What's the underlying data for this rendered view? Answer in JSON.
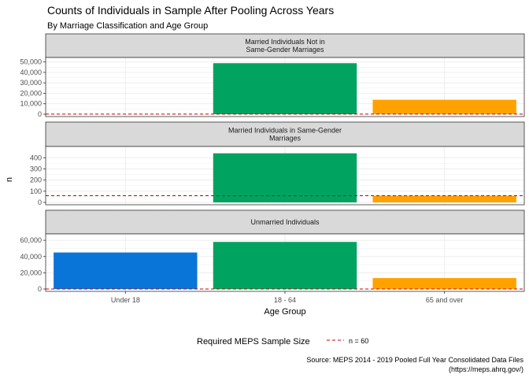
{
  "chart_data": {
    "type": "bar",
    "title": "Counts of Individuals in Sample After Pooling Across Years",
    "subtitle": "By Marriage Classification and Age Group",
    "xlabel": "Age Group",
    "ylabel": "n",
    "categories": [
      "Under 18",
      "18 - 64",
      "65 and over"
    ],
    "category_colors": [
      "#0A75D8",
      "#00A35F",
      "#FFA200"
    ],
    "facets": [
      {
        "label_lines": [
          "Married Individuals Not in",
          "Same-Gender Marriages"
        ],
        "values": [
          0,
          48800,
          13800
        ],
        "ylim": [
          0,
          52000
        ],
        "yticks": [
          0,
          10000,
          20000,
          30000,
          40000,
          50000
        ],
        "ytick_labels": [
          "0",
          "10,000",
          "20,000",
          "30,000",
          "40,000",
          "50,000"
        ]
      },
      {
        "label_lines": [
          "Married Individuals in Same-Gender",
          "Marriages"
        ],
        "values": [
          0,
          440,
          60
        ],
        "ylim": [
          0,
          480
        ],
        "yticks": [
          0,
          100,
          200,
          300,
          400
        ],
        "ytick_labels": [
          "0",
          "100",
          "200",
          "300",
          "400"
        ]
      },
      {
        "label_lines": [
          "Unmarried Individuals"
        ],
        "values": [
          45000,
          58000,
          13500
        ],
        "ylim": [
          0,
          65000
        ],
        "yticks": [
          0,
          20000,
          40000,
          60000
        ],
        "ytick_labels": [
          "0",
          "20,000",
          "40,000",
          "60,000"
        ]
      }
    ],
    "reference_line": {
      "value": 60,
      "color": "#CC0000",
      "style": "dashed"
    },
    "legend": {
      "title": "Required MEPS Sample Size",
      "label": "n = 60",
      "position": "bottom"
    },
    "grid": true,
    "caption_lines": [
      "Source: MEPS 2014 - 2019 Pooled Full Year Consolidated Data Files",
      "(https://meps.ahrq.gov/)"
    ]
  }
}
